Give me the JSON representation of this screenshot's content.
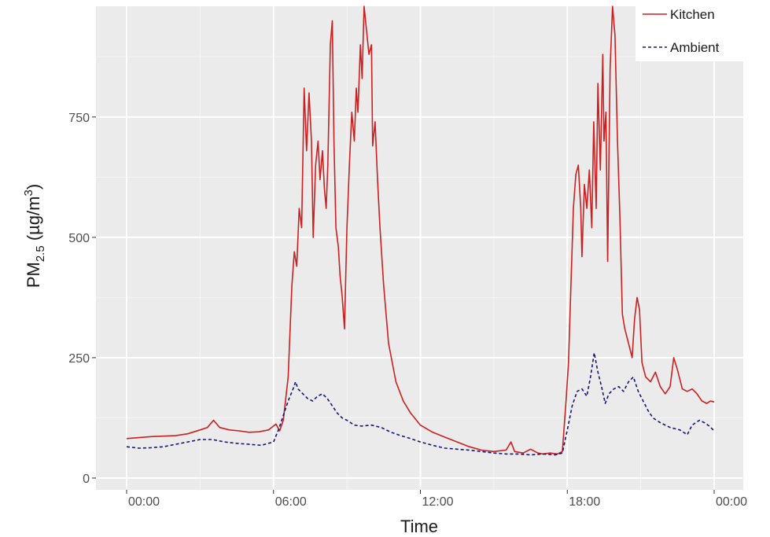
{
  "chart_data": {
    "type": "line",
    "title": "",
    "xlabel": "Time",
    "ylabel": {
      "prefix": "PM",
      "subscript": "2.5",
      "unit_open": " (µg/m",
      "superscript": "3",
      "unit_close": ")"
    },
    "x_unit": "hours",
    "xlim": [
      0,
      24
    ],
    "ylim": [
      0,
      980
    ],
    "x_ticks": [
      {
        "value": 0,
        "label": "00:00"
      },
      {
        "value": 6,
        "label": "06:00"
      },
      {
        "value": 12,
        "label": "12:00"
      },
      {
        "value": 18,
        "label": "18:00"
      },
      {
        "value": 24,
        "label": "00:00"
      }
    ],
    "y_ticks": [
      {
        "value": 0,
        "label": "0"
      },
      {
        "value": 250,
        "label": "250"
      },
      {
        "value": 500,
        "label": "500"
      },
      {
        "value": 750,
        "label": "750"
      }
    ],
    "grid": true,
    "legend_position": "top-right",
    "series": [
      {
        "name": "Kitchen",
        "color": "#cc1f1f",
        "dash": "solid",
        "points": [
          [
            0,
            82
          ],
          [
            0.5,
            84
          ],
          [
            1,
            86
          ],
          [
            1.5,
            87
          ],
          [
            2,
            88
          ],
          [
            2.5,
            92
          ],
          [
            3,
            100
          ],
          [
            3.3,
            105
          ],
          [
            3.55,
            120
          ],
          [
            3.8,
            105
          ],
          [
            4.2,
            100
          ],
          [
            4.6,
            98
          ],
          [
            5,
            95
          ],
          [
            5.4,
            96
          ],
          [
            5.8,
            100
          ],
          [
            6.1,
            112
          ],
          [
            6.25,
            98
          ],
          [
            6.4,
            120
          ],
          [
            6.6,
            210
          ],
          [
            6.75,
            400
          ],
          [
            6.85,
            470
          ],
          [
            6.95,
            440
          ],
          [
            7.05,
            560
          ],
          [
            7.15,
            520
          ],
          [
            7.25,
            810
          ],
          [
            7.35,
            680
          ],
          [
            7.45,
            800
          ],
          [
            7.55,
            700
          ],
          [
            7.62,
            500
          ],
          [
            7.72,
            650
          ],
          [
            7.82,
            700
          ],
          [
            7.9,
            620
          ],
          [
            8,
            680
          ],
          [
            8.08,
            600
          ],
          [
            8.15,
            560
          ],
          [
            8.22,
            650
          ],
          [
            8.32,
            900
          ],
          [
            8.4,
            950
          ],
          [
            8.47,
            700
          ],
          [
            8.55,
            520
          ],
          [
            8.65,
            480
          ],
          [
            8.72,
            420
          ],
          [
            8.8,
            380
          ],
          [
            8.9,
            310
          ],
          [
            9,
            520
          ],
          [
            9.1,
            650
          ],
          [
            9.2,
            760
          ],
          [
            9.3,
            700
          ],
          [
            9.38,
            810
          ],
          [
            9.45,
            760
          ],
          [
            9.55,
            900
          ],
          [
            9.62,
            830
          ],
          [
            9.7,
            980
          ],
          [
            9.8,
            930
          ],
          [
            9.9,
            880
          ],
          [
            10,
            900
          ],
          [
            10.05,
            690
          ],
          [
            10.15,
            740
          ],
          [
            10.25,
            620
          ],
          [
            10.35,
            520
          ],
          [
            10.5,
            400
          ],
          [
            10.7,
            280
          ],
          [
            11,
            200
          ],
          [
            11.3,
            160
          ],
          [
            11.6,
            135
          ],
          [
            12,
            110
          ],
          [
            12.5,
            95
          ],
          [
            13,
            85
          ],
          [
            13.5,
            75
          ],
          [
            14,
            65
          ],
          [
            14.5,
            58
          ],
          [
            15,
            55
          ],
          [
            15.5,
            58
          ],
          [
            15.7,
            75
          ],
          [
            15.85,
            55
          ],
          [
            16.2,
            52
          ],
          [
            16.5,
            60
          ],
          [
            16.8,
            52
          ],
          [
            17,
            50
          ],
          [
            17.3,
            52
          ],
          [
            17.6,
            50
          ],
          [
            17.8,
            55
          ],
          [
            17.95,
            160
          ],
          [
            18.05,
            240
          ],
          [
            18.15,
            400
          ],
          [
            18.25,
            560
          ],
          [
            18.35,
            630
          ],
          [
            18.45,
            650
          ],
          [
            18.55,
            560
          ],
          [
            18.6,
            460
          ],
          [
            18.7,
            610
          ],
          [
            18.8,
            560
          ],
          [
            18.9,
            640
          ],
          [
            19,
            520
          ],
          [
            19.08,
            740
          ],
          [
            19.18,
            560
          ],
          [
            19.25,
            820
          ],
          [
            19.35,
            640
          ],
          [
            19.45,
            880
          ],
          [
            19.5,
            700
          ],
          [
            19.58,
            760
          ],
          [
            19.65,
            450
          ],
          [
            19.75,
            850
          ],
          [
            19.85,
            980
          ],
          [
            19.95,
            920
          ],
          [
            20.05,
            700
          ],
          [
            20.15,
            540
          ],
          [
            20.25,
            340
          ],
          [
            20.35,
            310
          ],
          [
            20.5,
            280
          ],
          [
            20.65,
            250
          ],
          [
            20.75,
            330
          ],
          [
            20.85,
            375
          ],
          [
            20.95,
            350
          ],
          [
            21.05,
            240
          ],
          [
            21.2,
            210
          ],
          [
            21.4,
            200
          ],
          [
            21.6,
            220
          ],
          [
            21.8,
            190
          ],
          [
            22,
            175
          ],
          [
            22.2,
            190
          ],
          [
            22.35,
            250
          ],
          [
            22.5,
            225
          ],
          [
            22.7,
            185
          ],
          [
            22.9,
            180
          ],
          [
            23.1,
            185
          ],
          [
            23.3,
            175
          ],
          [
            23.5,
            160
          ],
          [
            23.7,
            155
          ],
          [
            23.85,
            160
          ],
          [
            24,
            158
          ]
        ]
      },
      {
        "name": "Ambient",
        "color": "#14147a",
        "dash": "dashed",
        "points": [
          [
            0,
            65
          ],
          [
            0.5,
            62
          ],
          [
            1,
            63
          ],
          [
            1.5,
            65
          ],
          [
            2,
            70
          ],
          [
            2.5,
            75
          ],
          [
            3,
            80
          ],
          [
            3.5,
            80
          ],
          [
            4,
            75
          ],
          [
            4.5,
            72
          ],
          [
            5,
            70
          ],
          [
            5.5,
            68
          ],
          [
            6,
            75
          ],
          [
            6.2,
            100
          ],
          [
            6.4,
            130
          ],
          [
            6.6,
            160
          ],
          [
            6.8,
            185
          ],
          [
            6.9,
            200
          ],
          [
            7,
            185
          ],
          [
            7.2,
            175
          ],
          [
            7.4,
            165
          ],
          [
            7.6,
            160
          ],
          [
            7.8,
            170
          ],
          [
            8,
            175
          ],
          [
            8.2,
            165
          ],
          [
            8.4,
            150
          ],
          [
            8.6,
            135
          ],
          [
            8.8,
            125
          ],
          [
            9,
            120
          ],
          [
            9.3,
            110
          ],
          [
            9.6,
            108
          ],
          [
            10,
            110
          ],
          [
            10.4,
            105
          ],
          [
            10.8,
            95
          ],
          [
            11.2,
            88
          ],
          [
            11.6,
            82
          ],
          [
            12,
            75
          ],
          [
            12.5,
            68
          ],
          [
            13,
            62
          ],
          [
            13.5,
            60
          ],
          [
            14,
            58
          ],
          [
            14.5,
            55
          ],
          [
            15,
            52
          ],
          [
            15.5,
            50
          ],
          [
            16,
            50
          ],
          [
            16.5,
            48
          ],
          [
            17,
            50
          ],
          [
            17.5,
            48
          ],
          [
            17.8,
            52
          ],
          [
            18,
            100
          ],
          [
            18.2,
            150
          ],
          [
            18.4,
            180
          ],
          [
            18.6,
            185
          ],
          [
            18.8,
            170
          ],
          [
            18.95,
            210
          ],
          [
            19.1,
            260
          ],
          [
            19.25,
            220
          ],
          [
            19.4,
            190
          ],
          [
            19.55,
            155
          ],
          [
            19.7,
            175
          ],
          [
            19.9,
            185
          ],
          [
            20.1,
            190
          ],
          [
            20.3,
            180
          ],
          [
            20.5,
            200
          ],
          [
            20.7,
            210
          ],
          [
            20.9,
            180
          ],
          [
            21.1,
            160
          ],
          [
            21.3,
            140
          ],
          [
            21.5,
            125
          ],
          [
            21.8,
            115
          ],
          [
            22.2,
            105
          ],
          [
            22.6,
            100
          ],
          [
            22.9,
            90
          ],
          [
            23.1,
            110
          ],
          [
            23.4,
            120
          ],
          [
            23.6,
            115
          ],
          [
            23.8,
            108
          ],
          [
            24,
            98
          ]
        ]
      }
    ]
  }
}
